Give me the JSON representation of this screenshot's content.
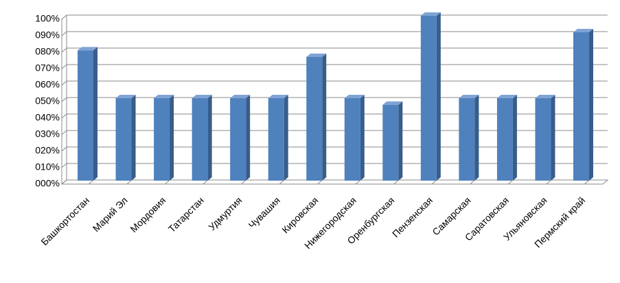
{
  "chart_data": {
    "type": "bar3d",
    "categories": [
      "Башкортостан",
      "Марий Эл",
      "Мордовия",
      "Татарстан",
      "Удмуртия",
      "Чувашия",
      "Кировская",
      "Нижегородская",
      "Оренбургская",
      "Пензенская",
      "Самарская",
      "Саратовская",
      "Ульяновская",
      "Пермский край"
    ],
    "values": [
      79,
      50,
      50,
      50,
      50,
      50,
      75,
      50,
      46,
      100,
      50,
      50,
      50,
      90
    ],
    "color": "#4f81bd",
    "ylim": [
      0,
      100
    ],
    "yticks": [
      {
        "value": 0,
        "label": "000%"
      },
      {
        "value": 10,
        "label": "010%"
      },
      {
        "value": 20,
        "label": "020%"
      },
      {
        "value": 30,
        "label": "030%"
      },
      {
        "value": 40,
        "label": "040%"
      },
      {
        "value": 50,
        "label": "050%"
      },
      {
        "value": 60,
        "label": "060%"
      },
      {
        "value": 70,
        "label": "070%"
      },
      {
        "value": 80,
        "label": "080%"
      },
      {
        "value": 90,
        "label": "090%"
      },
      {
        "value": 100,
        "label": "100%"
      }
    ],
    "grid": true
  }
}
